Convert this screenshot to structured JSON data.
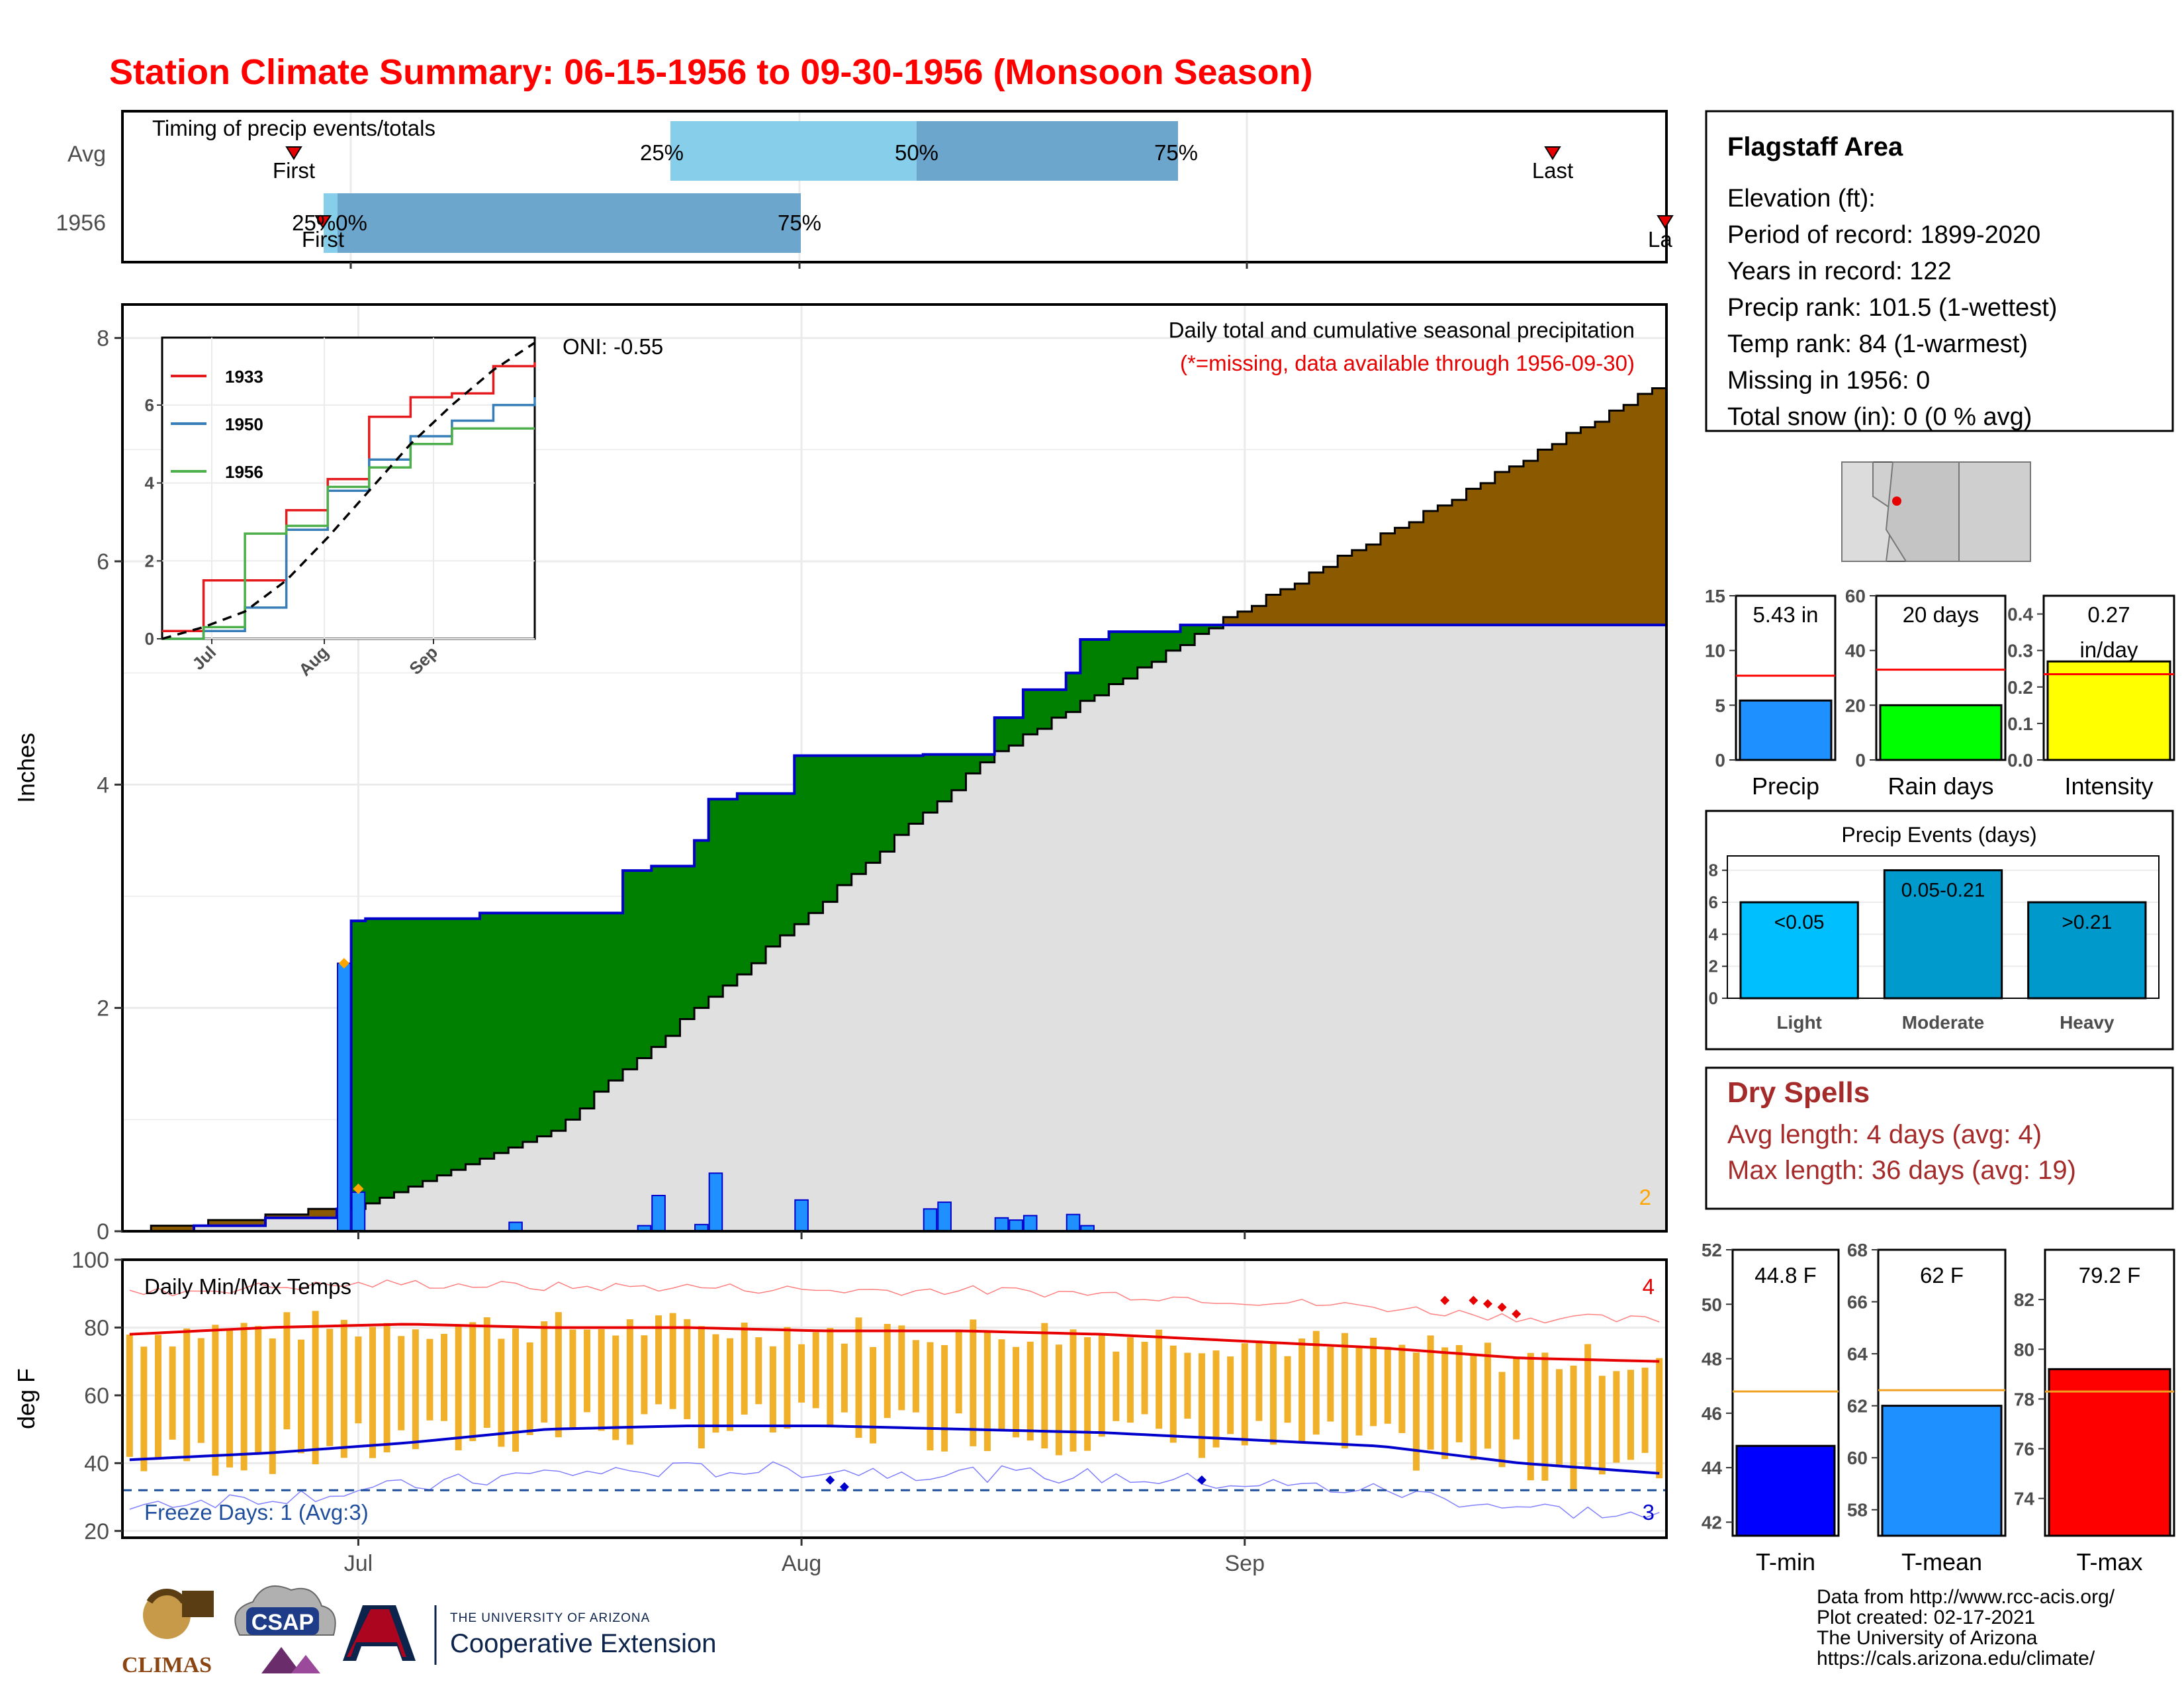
{
  "title": "Station Climate Summary: 06-15-1956 to 09-30-1956 (Monsoon Season)",
  "timing_panel": {
    "label": "Timing of precip events/totals",
    "rows": [
      "Avg",
      "1956"
    ],
    "avg": {
      "first": "First",
      "last": "Last",
      "p25": "25%",
      "p50": "50%",
      "p75": "75%"
    },
    "year": {
      "label": "25%0%",
      "first": "First",
      "last": "La",
      "p75": "75%"
    }
  },
  "main_panel": {
    "ylabel": "Inches",
    "yticks": [
      "0",
      "2",
      "4",
      "6",
      "8"
    ],
    "oni": "ONI: -0.55",
    "note1": "Daily total and cumulative seasonal precipitation",
    "note2": "(*=missing, data available through 1956-09-30)",
    "corner_count": "2",
    "colors": {
      "wetter": "#008000",
      "drier": "#8B5A00",
      "normal": "#e0e0e0",
      "bars": "#1e90ff",
      "line": "#0000cd"
    }
  },
  "inset": {
    "legend": [
      "1933",
      "1950",
      "1956"
    ],
    "yticks": [
      "0",
      "2",
      "4",
      "6"
    ],
    "xticks": [
      "Jul",
      "Aug",
      "Sep"
    ],
    "colors": [
      "#e41a1c",
      "#377eb8",
      "#4daf4a"
    ]
  },
  "temp_panel": {
    "title": "Daily Min/Max Temps",
    "ylabel": "deg F",
    "yticks": [
      "20",
      "40",
      "60",
      "80",
      "100"
    ],
    "xticks": [
      "Jul",
      "Aug",
      "Sep"
    ],
    "freeze": "Freeze Days: 1 (Avg:3)",
    "hot_count": "4",
    "freeze_count": "3"
  },
  "info_box": {
    "station": "Flagstaff Area",
    "lines": [
      "Elevation (ft):",
      "Period of record: 1899-2020",
      "Years in record: 122",
      "Precip rank: 101.5 (1-wettest)",
      "Temp rank: 84 (1-warmest)",
      "Missing in 1956: 0",
      "Total snow (in): 0 (0 % avg)"
    ]
  },
  "mini_bars": {
    "precip": {
      "label": "Precip",
      "value_label": "5.43 in",
      "value": 5.43,
      "avg": 7.7,
      "ymax": 15,
      "ticks": [
        "0",
        "5",
        "10",
        "15"
      ],
      "color": "#1e90ff"
    },
    "raindays": {
      "label": "Rain days",
      "value_label": "20 days",
      "value": 20,
      "avg": 33,
      "ymax": 60,
      "ticks": [
        "0",
        "20",
        "40",
        "60"
      ],
      "color": "#00ff00"
    },
    "intensity": {
      "label": "Intensity",
      "value_label1": "0.27",
      "value_label2": "in/day",
      "value": 0.27,
      "avg": 0.235,
      "ymax": 0.45,
      "ticks": [
        "0.0",
        "0.1",
        "0.2",
        "0.3",
        "0.4"
      ],
      "color": "#ffff00"
    }
  },
  "precip_events": {
    "title": "Precip Events (days)",
    "categories": [
      "Light",
      "Moderate",
      "Heavy"
    ],
    "bar_labels": [
      "<0.05",
      "0.05-0.21",
      ">0.21"
    ],
    "values": [
      6,
      8,
      6
    ],
    "ticks": [
      "0",
      "2",
      "4",
      "6",
      "8"
    ],
    "colors": [
      "#00bfff",
      "#009acd",
      "#0099cc"
    ]
  },
  "dry_spells": {
    "title": "Dry Spells",
    "avg": "Avg length: 4 days (avg: 4)",
    "max": "Max length: 36 days (avg: 19)"
  },
  "temp_bars": {
    "tmin": {
      "label": "T-min",
      "value_label": "44.8 F",
      "value": 44.8,
      "avg": 46.8,
      "ymin": 41.5,
      "ymax": 52,
      "ticks": [
        "42",
        "44",
        "46",
        "48",
        "50",
        "52"
      ],
      "color": "#0000ff"
    },
    "tmean": {
      "label": "T-mean",
      "value_label": "62 F",
      "value": 62,
      "avg": 62.6,
      "ymin": 57,
      "ymax": 68,
      "ticks": [
        "58",
        "60",
        "62",
        "64",
        "66",
        "68"
      ],
      "color": "#1e90ff"
    },
    "tmax": {
      "label": "T-max",
      "value_label": "79.2 F",
      "value": 79.2,
      "avg": 78.3,
      "ymin": 72.5,
      "ymax": 84,
      "ticks": [
        "74",
        "76",
        "78",
        "80",
        "82"
      ],
      "color": "#ff0000"
    }
  },
  "footer": {
    "lines": [
      "Data from http://www.rcc-acis.org/",
      "Plot created: 02-17-2021",
      "The University of Arizona",
      "https://cals.arizona.edu/climate/"
    ],
    "logos": {
      "climas": "CLIMAS",
      "csap": "CSAP",
      "ua_small": "THE UNIVERSITY OF ARIZONA",
      "ua_big": "Cooperative Extension"
    }
  },
  "chart_data": [
    {
      "type": "area",
      "title": "Daily total and cumulative seasonal precipitation",
      "ylabel": "Inches",
      "ylim": [
        0,
        8.3
      ],
      "xlim": [
        "1956-06-15",
        "1956-09-30"
      ],
      "series": [
        {
          "name": "",
          "x": [
            "06-15",
            "06-20",
            "06-25",
            "06-30",
            "07-01",
            "07-02",
            "07-10",
            "07-20",
            "07-22",
            "07-25",
            "07-26",
            "07-28",
            "08-01",
            "08-10",
            "08-15",
            "08-17",
            "08-20",
            "08-21",
            "08-23",
            "08-28",
            "09-01",
            "09-15",
            "09-30"
          ],
          "values": [
            0,
            0.05,
            0.12,
            0.2,
            2.78,
            2.8,
            2.85,
            3.23,
            3.27,
            3.5,
            3.87,
            3.92,
            4.26,
            4.27,
            4.6,
            4.85,
            5.0,
            5.3,
            5.37,
            5.43,
            5.43,
            5.43,
            5.43
          ]
        },
        {
          "name": "",
          "x": [
            "06-15",
            "07-01",
            "07-15",
            "08-01",
            "08-15",
            "09-01",
            "09-15",
            "09-30"
          ],
          "values": [
            0,
            0.22,
            0.9,
            2.75,
            4.3,
            5.55,
            6.5,
            7.55
          ]
        }
      ],
      "daily_bars": {
        "x": [
          "06-30",
          "07-01",
          "07-12",
          "07-21",
          "07-22",
          "07-25",
          "07-26",
          "08-01",
          "08-10",
          "08-11",
          "08-15",
          "08-16",
          "08-17",
          "08-20",
          "08-21"
        ],
        "values": [
          2.4,
          0.35,
          0.08,
          0.05,
          0.32,
          0.06,
          0.52,
          0.28,
          0.2,
          0.26,
          0.12,
          0.1,
          0.14,
          0.15,
          0.05
        ]
      }
    },
    {
      "type": "line",
      "title": "",
      "xticks": [
        "Jul",
        "Aug",
        "Sep"
      ],
      "ylim": [
        0,
        7.5
      ],
      "series": [
        {
          "name": "1933",
          "values": [
            0.2,
            1.5,
            1.5,
            3.3,
            4.1,
            5.7,
            6.2,
            6.3,
            7.0,
            7.1
          ]
        },
        {
          "name": "1950",
          "values": [
            0,
            0.2,
            0.8,
            2.8,
            3.8,
            4.6,
            5.2,
            5.6,
            6.0,
            6.2
          ]
        },
        {
          "name": "1956",
          "values": [
            0,
            0.3,
            2.7,
            2.9,
            3.9,
            4.4,
            5.0,
            5.4,
            5.4,
            5.4
          ]
        },
        {
          "name": "",
          "values": [
            0,
            0.3,
            0.7,
            1.5,
            2.6,
            3.8,
            5.0,
            6.0,
            6.9,
            7.6
          ]
        }
      ]
    },
    {
      "type": "bar",
      "title": "Daily Min/Max Temps",
      "ylabel": "deg F",
      "ylim": [
        18,
        100
      ],
      "avg_max": [
        78,
        80,
        81,
        80,
        80,
        79,
        79,
        78,
        76,
        74,
        71,
        70
      ],
      "avg_min": [
        41,
        43,
        46,
        50,
        51,
        51,
        50,
        49,
        47,
        45,
        40,
        37
      ],
      "freeze_line": 32
    },
    {
      "type": "bar",
      "title": "Precip Events (days)",
      "categories": [
        "Light",
        "Moderate",
        "Heavy"
      ],
      "values": [
        6,
        8,
        6
      ]
    }
  ]
}
